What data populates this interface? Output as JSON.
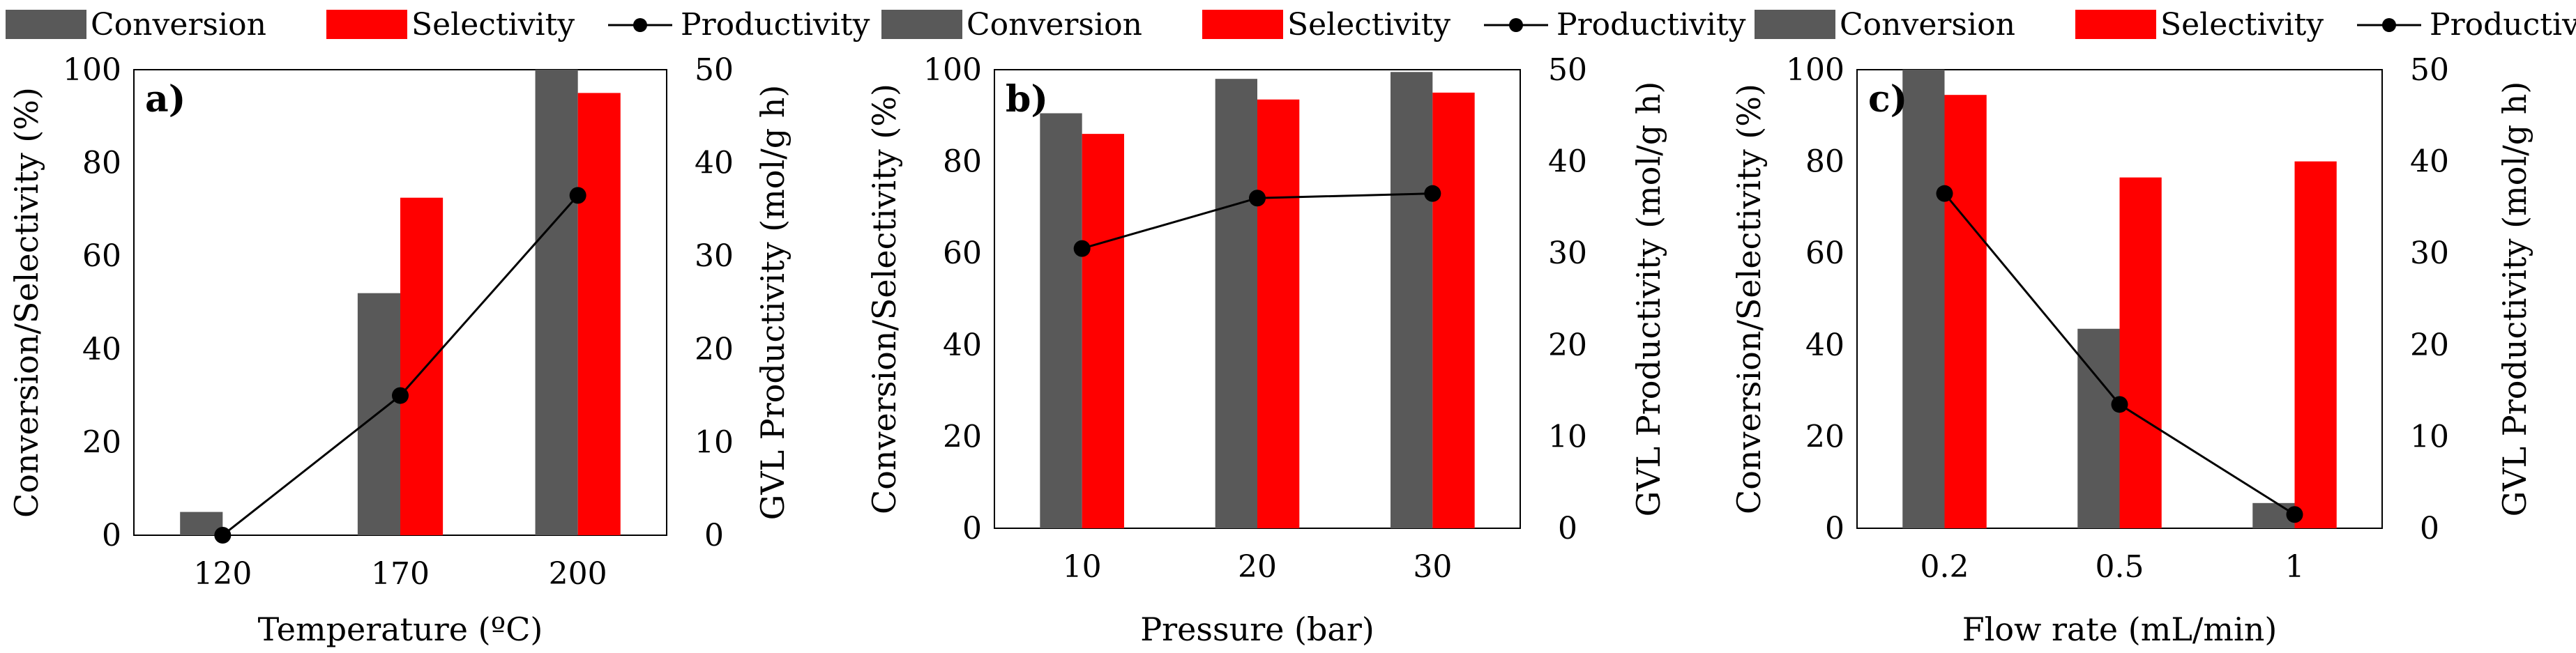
{
  "colors": {
    "conversion": "#595959",
    "selectivity": "#ff0000",
    "productivity": "#000000"
  },
  "legend": {
    "conversion": "Conversion",
    "selectivity": "Selectivity",
    "productivity": "Productivity"
  },
  "chart_data": [
    {
      "type": "bar",
      "panel": "a)",
      "title": "",
      "xlabel": "Temperature (ºC)",
      "ylabel": "Conversion/Selectivity (%)",
      "y2label": "GVL Productivity (mol/g h)",
      "ylim": [
        0,
        100
      ],
      "y2lim": [
        0,
        50
      ],
      "yticks": [
        "0",
        "20",
        "40",
        "60",
        "80",
        "100"
      ],
      "y2ticks": [
        "0",
        "10",
        "20",
        "30",
        "40",
        "50"
      ],
      "categories": [
        "120",
        "170",
        "200"
      ],
      "series": [
        {
          "name": "Conversion",
          "values": [
            5,
            52,
            100
          ]
        },
        {
          "name": "Selectivity",
          "values": [
            0,
            72.5,
            95
          ]
        }
      ],
      "line_series": {
        "name": "Productivity",
        "axis": "secondary",
        "values": [
          0,
          15,
          36.5
        ]
      }
    },
    {
      "type": "bar",
      "panel": "b)",
      "title": "",
      "xlabel": "Pressure (bar)",
      "ylabel": "Conversion/Selectivity (%)",
      "y2label": "GVL Productivity (mol/g h)",
      "ylim": [
        0,
        100
      ],
      "y2lim": [
        0,
        50
      ],
      "yticks": [
        "0",
        "20",
        "40",
        "60",
        "80",
        "100"
      ],
      "y2ticks": [
        "0",
        "10",
        "20",
        "30",
        "40",
        "50"
      ],
      "categories": [
        "10",
        "20",
        "30"
      ],
      "series": [
        {
          "name": "Conversion",
          "values": [
            90.5,
            98,
            99.5
          ]
        },
        {
          "name": "Selectivity",
          "values": [
            86,
            93.5,
            95
          ]
        }
      ],
      "line_series": {
        "name": "Productivity",
        "axis": "secondary",
        "values": [
          30.5,
          36,
          36.5
        ]
      }
    },
    {
      "type": "bar",
      "panel": "c)",
      "title": "",
      "xlabel": "Flow rate (mL/min)",
      "ylabel": "Conversion/Selectivity (%)",
      "y2label": "GVL Productivity (mol/g h)",
      "ylim": [
        0,
        100
      ],
      "y2lim": [
        0,
        50
      ],
      "yticks": [
        "0",
        "20",
        "40",
        "60",
        "80",
        "100"
      ],
      "y2ticks": [
        "0",
        "10",
        "20",
        "30",
        "40",
        "50"
      ],
      "categories": [
        "0.2",
        "0.5",
        "1"
      ],
      "series": [
        {
          "name": "Conversion",
          "values": [
            100,
            43.5,
            5.5
          ]
        },
        {
          "name": "Selectivity",
          "values": [
            94.5,
            76.5,
            80
          ]
        }
      ],
      "line_series": {
        "name": "Productivity",
        "axis": "secondary",
        "values": [
          36.5,
          13.5,
          1.5
        ]
      }
    }
  ]
}
